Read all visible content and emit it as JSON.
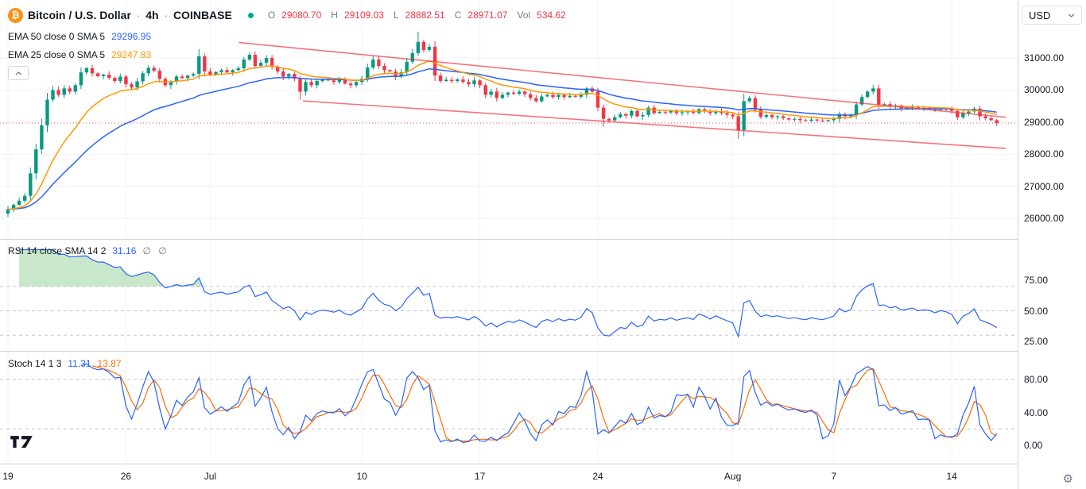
{
  "header": {
    "symbol_name": "Bitcoin / U.S. Dollar",
    "sep": "·",
    "interval": "4h",
    "exchange": "COINBASE",
    "ohlc": {
      "o_label": "O",
      "o": "29080.70",
      "h_label": "H",
      "h": "29109.03",
      "l_label": "L",
      "l": "28882.51",
      "c_label": "C",
      "c": "28971.07",
      "vol_label": "Vol",
      "vol": "534.62"
    }
  },
  "indicators": {
    "ema50": {
      "title": "EMA 50 close 0 SMA 5",
      "value": "29296.95"
    },
    "ema25": {
      "title": "EMA 25 close 0 SMA 5",
      "value": "29247.83"
    },
    "rsi": {
      "title": "RSI 14 close SMA 14 2",
      "value": "31.16",
      "extra": "∅ ∅"
    },
    "stoch": {
      "title": "Stoch 14 1 3",
      "k_value": "11.31",
      "d_value": "13.87"
    }
  },
  "axis": {
    "currency_button": "USD",
    "price_ticks": [
      {
        "v": 31000,
        "label": "31000.00"
      },
      {
        "v": 30000,
        "label": "30000.00"
      },
      {
        "v": 29000,
        "label": "29000.00"
      },
      {
        "v": 28000,
        "label": "28000.00"
      },
      {
        "v": 27000,
        "label": "27000.00"
      },
      {
        "v": 26000,
        "label": "26000.00"
      }
    ],
    "rsi_ticks": [
      {
        "v": 75,
        "label": "75.00"
      },
      {
        "v": 50,
        "label": "50.00"
      },
      {
        "v": 25,
        "label": "25.00"
      }
    ],
    "stoch_ticks": [
      {
        "v": 80,
        "label": "80.00"
      },
      {
        "v": 40,
        "label": "40.00"
      },
      {
        "v": 0,
        "label": "0.00"
      }
    ],
    "time_labels": [
      {
        "d": 0,
        "label": "19"
      },
      {
        "d": 7,
        "label": "26"
      },
      {
        "d": 12,
        "label": "Jul"
      },
      {
        "d": 21,
        "label": "10"
      },
      {
        "d": 28,
        "label": "17"
      },
      {
        "d": 35,
        "label": "24"
      },
      {
        "d": 43,
        "label": "Aug"
      },
      {
        "d": 49,
        "label": "7"
      },
      {
        "d": 56,
        "label": "14"
      }
    ]
  },
  "colors": {
    "up": "#089981",
    "down": "#f23645",
    "ema50": "#2962ff",
    "ema25": "#ff9800",
    "rsi_line": "#2962ff",
    "rsi_fill": "rgba(76,175,80,0.3)",
    "stoch_k": "#2962ff",
    "stoch_d": "#ff6d00",
    "trend": "#f23645",
    "grid": "#f0f3fa",
    "band": "#9598a1",
    "status_dot": "#00a99d",
    "bitcoin": "#f7931a",
    "muted": "#787b86",
    "text": "#131722"
  },
  "chart_data": {
    "type": "candlestick",
    "symbol": "BTCUSD",
    "exchange": "COINBASE",
    "interval": "4h",
    "time_range": "Jun 19 - Aug 16",
    "bars_per_day": 3,
    "price_ylim": [
      25400,
      32800
    ],
    "price_gridlines": [
      31000,
      30000,
      29000,
      28000,
      27000,
      26000
    ],
    "last_price": 28971.07,
    "first_open": 26150,
    "closes": [
      26280,
      26420,
      26550,
      26700,
      27400,
      28150,
      28900,
      29700,
      30000,
      29850,
      30050,
      29950,
      30150,
      30550,
      30680,
      30520,
      30430,
      30480,
      30380,
      30280,
      30420,
      30180,
      30080,
      30270,
      30520,
      30690,
      30600,
      30350,
      30150,
      30270,
      30420,
      30370,
      30450,
      30500,
      31050,
      30580,
      30480,
      30560,
      30620,
      30550,
      30620,
      30680,
      30950,
      31100,
      30750,
      30850,
      31000,
      30720,
      30580,
      30420,
      30500,
      30350,
      29950,
      30250,
      30150,
      30280,
      30330,
      30300,
      30250,
      30320,
      30200,
      30150,
      30250,
      30350,
      30700,
      30950,
      30750,
      30620,
      30580,
      30420,
      30550,
      30880,
      31150,
      31500,
      31250,
      31350,
      30450,
      30280,
      30320,
      30280,
      30330,
      30250,
      30180,
      30300,
      30150,
      29850,
      29950,
      29750,
      29850,
      29920,
      29880,
      29950,
      29870,
      29750,
      29650,
      29800,
      29850,
      29780,
      29850,
      29780,
      29820,
      29790,
      29850,
      30050,
      29950,
      29450,
      29100,
      29050,
      29150,
      29250,
      29200,
      29350,
      29180,
      29220,
      29450,
      29280,
      29320,
      29300,
      29350,
      29280,
      29310,
      29330,
      29290,
      29400,
      29350,
      29280,
      29340,
      29280,
      29230,
      29180,
      28750,
      29650,
      29750,
      29380,
      29160,
      29220,
      29150,
      29180,
      29120,
      29080,
      29100,
      29060,
      29040,
      29080,
      29050,
      29030,
      29060,
      29100,
      29250,
      29180,
      29220,
      29550,
      29780,
      29950,
      30050,
      29550,
      29560,
      29480,
      29520,
      29430,
      29450,
      29480,
      29420,
      29440,
      29430,
      29380,
      29420,
      29400,
      29350,
      29150,
      29280,
      29330,
      29420,
      29180,
      29120,
      29060,
      28971
    ],
    "wick_overrides": [
      {
        "i": 34,
        "high": 31280
      },
      {
        "i": 52,
        "low": 29700
      },
      {
        "i": 73,
        "high": 31820
      },
      {
        "i": 106,
        "low": 28860
      },
      {
        "i": 130,
        "low": 28480
      },
      {
        "i": 154,
        "high": 30150
      },
      {
        "i": 176,
        "low": 28882
      }
    ],
    "trendlines": [
      {
        "d1": 13.7,
        "p1": 31480,
        "d2": 59.2,
        "p2": 29150
      },
      {
        "d1": 17.5,
        "p1": 29660,
        "d2": 59.2,
        "p2": 28180
      }
    ],
    "indicator_settings": {
      "ema_fast": {
        "name": "EMA",
        "length": 25,
        "last": 29247.83
      },
      "ema_slow": {
        "name": "EMA",
        "length": 50,
        "last": 29296.95
      },
      "rsi": {
        "length": 14,
        "last": 31.16,
        "bands": [
          70,
          50,
          30
        ]
      },
      "stoch": {
        "k": 14,
        "smooth": 1,
        "d": 3,
        "last_k": 11.31,
        "last_d": 13.87,
        "bands": [
          80,
          20
        ]
      }
    },
    "rsi_bands": [
      70,
      50,
      30
    ],
    "stoch_bands": [
      80,
      20
    ]
  }
}
